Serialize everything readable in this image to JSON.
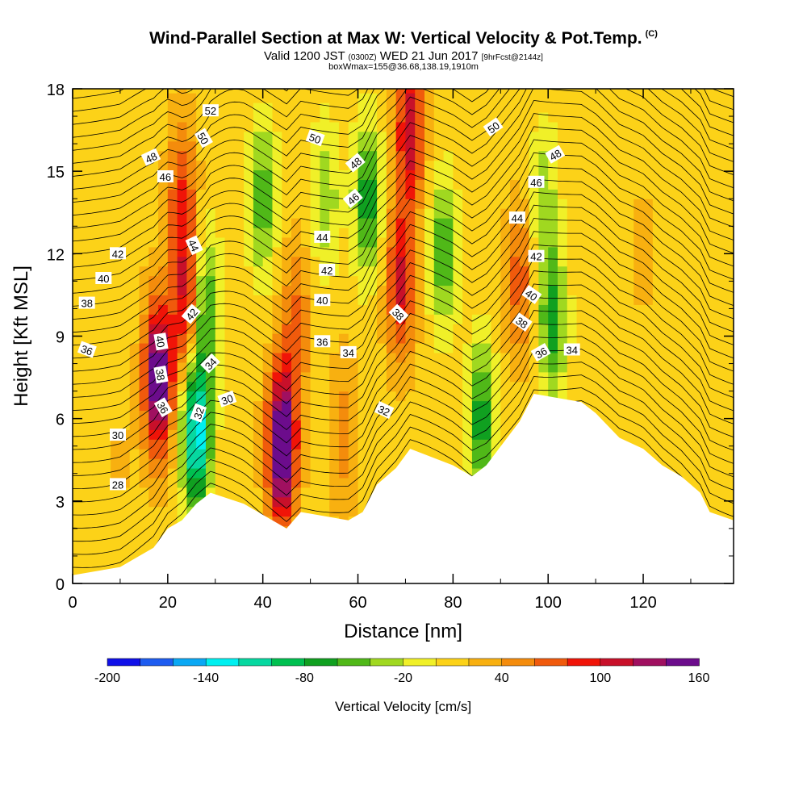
{
  "header": {
    "title": "Wind-Parallel Section at Max W: Vertical Velocity & Pot.Temp.",
    "title_mark": "(C)",
    "subtitle_main": "Valid 1200 JST",
    "subtitle_zulu": "(0300Z)",
    "subtitle_date": "WED 21 Jun 2017",
    "subtitle_fcst": "[9hrFcst@2144z]",
    "subtitle2": "boxWmax=155@36.68,138.19,1910m"
  },
  "colors": {
    "background": "#ffffff",
    "terrain_mask": "#ffffff",
    "contour_line": "#000000",
    "scale": [
      "#1010e8",
      "#1e5cf0",
      "#0aa8f4",
      "#00f0f0",
      "#06d8a0",
      "#00c050",
      "#10a020",
      "#50b818",
      "#a0d820",
      "#f0f028",
      "#fcd218",
      "#f8b010",
      "#f48c0c",
      "#f05a0c",
      "#f01408",
      "#c8102a",
      "#a01060",
      "#6c0c8c"
    ]
  },
  "chart_data": {
    "type": "heatmap",
    "title": "Wind-Parallel Section at Max W: Vertical Velocity & Pot.Temp.",
    "xlabel": "Distance [nm]",
    "ylabel": "Height [Kft MSL]",
    "xlim": [
      0,
      139
    ],
    "ylim": [
      0,
      18
    ],
    "x_ticks": [
      0,
      20,
      40,
      60,
      80,
      100,
      120
    ],
    "y_ticks": [
      0,
      3,
      6,
      9,
      12,
      15,
      18
    ],
    "colorbar": {
      "label": "Vertical Velocity [cm/s]",
      "bounds": [
        -200,
        -180,
        -160,
        -140,
        -120,
        -100,
        -80,
        -60,
        -40,
        -20,
        0,
        20,
        40,
        60,
        80,
        100,
        120,
        140,
        160,
        180
      ],
      "tick_labels": [
        -200,
        -140,
        -80,
        -20,
        40,
        100,
        160
      ]
    },
    "terrain_top_kft": [
      [
        0,
        0.3
      ],
      [
        10,
        0.6
      ],
      [
        13,
        0.9
      ],
      [
        17,
        1.3
      ],
      [
        20,
        2.0
      ],
      [
        23,
        2.3
      ],
      [
        26,
        2.9
      ],
      [
        29,
        3.3
      ],
      [
        36,
        2.9
      ],
      [
        42,
        2.3
      ],
      [
        45,
        2.0
      ],
      [
        48,
        2.6
      ],
      [
        58,
        2.3
      ],
      [
        61,
        2.6
      ],
      [
        64,
        3.6
      ],
      [
        68,
        4.2
      ],
      [
        71,
        4.9
      ],
      [
        80,
        4.3
      ],
      [
        84,
        3.9
      ],
      [
        87,
        4.3
      ],
      [
        94,
        5.9
      ],
      [
        97,
        6.9
      ],
      [
        107,
        6.6
      ],
      [
        110,
        6.2
      ],
      [
        115,
        5.3
      ],
      [
        120,
        4.9
      ],
      [
        124,
        4.3
      ],
      [
        128,
        3.9
      ],
      [
        132,
        3.3
      ],
      [
        134,
        2.6
      ],
      [
        139,
        2.3
      ]
    ],
    "vertical_velocity_features": [
      {
        "x": 18,
        "y": 7.5,
        "peak": 160
      },
      {
        "x": 24,
        "y": 10,
        "peak": 90
      },
      {
        "x": 26,
        "y": 5.5,
        "peak": -150
      },
      {
        "x": 28,
        "y": 10,
        "peak": -80
      },
      {
        "x": 23,
        "y": 14,
        "peak": 70
      },
      {
        "x": 40,
        "y": 14,
        "peak": -70
      },
      {
        "x": 44,
        "y": 5,
        "peak": 175
      },
      {
        "x": 47,
        "y": 9.5,
        "peak": 55
      },
      {
        "x": 53,
        "y": 14,
        "peak": -50
      },
      {
        "x": 62,
        "y": 14,
        "peak": -85
      },
      {
        "x": 57,
        "y": 5.5,
        "peak": 40
      },
      {
        "x": 69,
        "y": 11,
        "peak": 95
      },
      {
        "x": 71,
        "y": 16.5,
        "peak": 105
      },
      {
        "x": 78,
        "y": 12,
        "peak": -70
      },
      {
        "x": 86,
        "y": 6,
        "peak": -85
      },
      {
        "x": 94,
        "y": 11,
        "peak": 60
      },
      {
        "x": 101,
        "y": 9.5,
        "peak": -80
      },
      {
        "x": 99,
        "y": 14,
        "peak": -45
      },
      {
        "x": 120,
        "y": 12,
        "peak": 15
      },
      {
        "x": 10,
        "y": 4.5,
        "peak": 10
      }
    ],
    "theta_contour_labels": [
      {
        "x": 29,
        "y": 17.2,
        "text": "52"
      },
      {
        "x": 27.5,
        "y": 16.2,
        "text": "50",
        "rot": 60
      },
      {
        "x": 16.5,
        "y": 15.5,
        "text": "48",
        "rot": -25
      },
      {
        "x": 19.5,
        "y": 14.8,
        "text": "46"
      },
      {
        "x": 25.5,
        "y": 12.3,
        "text": "44",
        "rot": 65
      },
      {
        "x": 9.5,
        "y": 12.0,
        "text": "42"
      },
      {
        "x": 6.5,
        "y": 11.1,
        "text": "40"
      },
      {
        "x": 3,
        "y": 10.2,
        "text": "38"
      },
      {
        "x": 3,
        "y": 8.5,
        "text": "36",
        "rot": 20
      },
      {
        "x": 25,
        "y": 9.8,
        "text": "42",
        "rot": -50
      },
      {
        "x": 18.5,
        "y": 8.8,
        "text": "40",
        "rot": 80
      },
      {
        "x": 18.5,
        "y": 7.6,
        "text": "38",
        "rot": 80
      },
      {
        "x": 19,
        "y": 6.4,
        "text": "36",
        "rot": 60
      },
      {
        "x": 29,
        "y": 8.0,
        "text": "34",
        "rot": -45
      },
      {
        "x": 26.5,
        "y": 6.2,
        "text": "32",
        "rot": -70
      },
      {
        "x": 32.5,
        "y": 6.7,
        "text": "30",
        "rot": -20
      },
      {
        "x": 9.5,
        "y": 5.4,
        "text": "30"
      },
      {
        "x": 9.5,
        "y": 3.6,
        "text": "28"
      },
      {
        "x": 51,
        "y": 16.2,
        "text": "50",
        "rot": 20
      },
      {
        "x": 59.5,
        "y": 15.3,
        "text": "48",
        "rot": -40
      },
      {
        "x": 59,
        "y": 14.0,
        "text": "46",
        "rot": -40
      },
      {
        "x": 52.5,
        "y": 12.6,
        "text": "44"
      },
      {
        "x": 53.5,
        "y": 11.4,
        "text": "42"
      },
      {
        "x": 52.5,
        "y": 10.3,
        "text": "40"
      },
      {
        "x": 52.5,
        "y": 8.8,
        "text": "36"
      },
      {
        "x": 58,
        "y": 8.4,
        "text": "34"
      },
      {
        "x": 68.5,
        "y": 9.8,
        "text": "38",
        "rot": 45
      },
      {
        "x": 65.5,
        "y": 6.3,
        "text": "32",
        "rot": 25
      },
      {
        "x": 88.5,
        "y": 16.6,
        "text": "50",
        "rot": -35
      },
      {
        "x": 101.5,
        "y": 15.6,
        "text": "48",
        "rot": -30
      },
      {
        "x": 97.5,
        "y": 14.6,
        "text": "46"
      },
      {
        "x": 93.5,
        "y": 13.3,
        "text": "44"
      },
      {
        "x": 97.5,
        "y": 11.9,
        "text": "42"
      },
      {
        "x": 96.5,
        "y": 10.5,
        "text": "40",
        "rot": 35
      },
      {
        "x": 94.5,
        "y": 9.5,
        "text": "38",
        "rot": 35
      },
      {
        "x": 98.5,
        "y": 8.4,
        "text": "36",
        "rot": -30
      },
      {
        "x": 105,
        "y": 8.5,
        "text": "34"
      }
    ]
  }
}
